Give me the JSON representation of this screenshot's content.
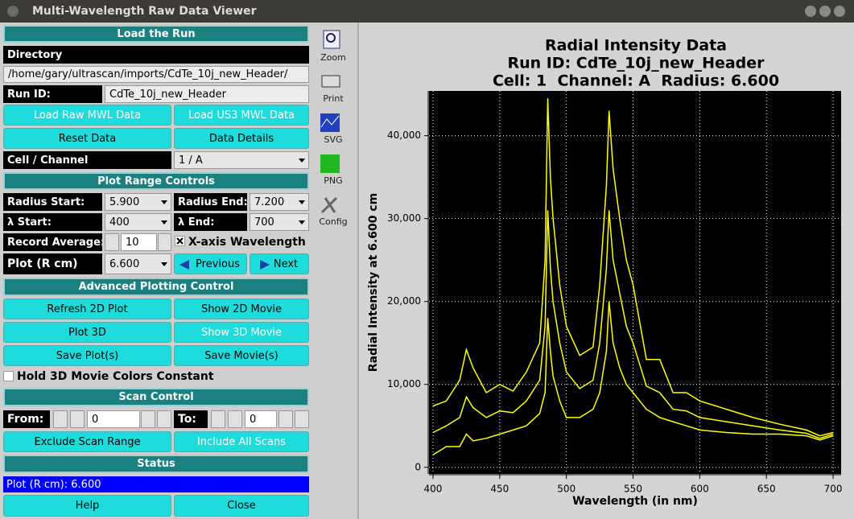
{
  "window": {
    "title": "Multi-Wavelength Raw Data Viewer"
  },
  "load_run": {
    "header": "Load the Run",
    "directory_label": "Directory",
    "directory": "/home/gary/ultrascan/imports/CdTe_10j_new_Header/",
    "run_id_label": "Run ID:",
    "run_id": "CdTe_10j_new_Header",
    "load_raw": "Load Raw MWL Data",
    "load_us3": "Load US3 MWL Data",
    "reset": "Reset Data",
    "details": "Data Details",
    "cell_label": "Cell / Channel",
    "cell": "1 / A"
  },
  "plot_range": {
    "header": "Plot Range Controls",
    "radius_start_label": "Radius Start:",
    "radius_start": "5.900",
    "radius_end_label": "Radius End:",
    "radius_end": "7.200",
    "lambda_start_label": "λ Start:",
    "lambda_start": "400",
    "lambda_end_label": "λ End:",
    "lambda_end": "700",
    "record_average_label": "Record Average:",
    "record_average": "10",
    "x_axis_wavelength": "X-axis Wavelength",
    "plot_label": "Plot (R cm)",
    "plot": "6.600",
    "previous": "Previous",
    "next": "Next"
  },
  "advanced": {
    "header": "Advanced Plotting Control",
    "refresh_2d": "Refresh 2D Plot",
    "show_2d_movie": "Show 2D Movie",
    "plot_3d": "Plot 3D",
    "show_3d_movie": "Show 3D Movie",
    "save_plots": "Save Plot(s)",
    "save_movies": "Save Movie(s)",
    "hold_colors": "Hold 3D Movie Colors Constant"
  },
  "scan": {
    "header": "Scan Control",
    "from_label": "From:",
    "from": "0",
    "to_label": "To:",
    "to": "0",
    "exclude": "Exclude Scan Range",
    "include_all": "Include All Scans"
  },
  "status": {
    "header": "Status",
    "message": "Plot (R cm): 6.600",
    "help": "Help",
    "close": "Close"
  },
  "toolbar": [
    "Zoom",
    "Print",
    "SVG",
    "PNG",
    "Config"
  ],
  "chart_data": {
    "type": "line",
    "title": [
      "Radial Intensity Data",
      "Run ID: CdTe_10j_new_Header",
      "Cell: 1  Channel: A  Radius: 6.600"
    ],
    "xlabel": "Wavelength (in nm)",
    "ylabel": "Radial Intensity at 6.600 cm",
    "x": [
      400,
      410,
      420,
      425,
      430,
      440,
      450,
      460,
      470,
      480,
      484,
      486,
      488,
      490,
      495,
      500,
      510,
      520,
      525,
      530,
      532,
      535,
      540,
      545,
      550,
      560,
      570,
      580,
      590,
      600,
      620,
      640,
      660,
      680,
      690,
      700
    ],
    "series": [
      {
        "color": "#ffff00",
        "values": [
          7400,
          8000,
          10500,
          14200,
          12000,
          9000,
          10000,
          9200,
          11500,
          15000,
          25000,
          44500,
          35000,
          30000,
          22000,
          17000,
          13500,
          14500,
          22000,
          34000,
          43000,
          36000,
          30000,
          25000,
          22000,
          13000,
          13000,
          9000,
          9000,
          8000,
          7000,
          6000,
          5200,
          4500,
          3800,
          4200
        ]
      },
      {
        "color": "#ffff00",
        "values": [
          4200,
          5000,
          6000,
          8500,
          7200,
          6000,
          6800,
          6600,
          8000,
          10500,
          17000,
          31000,
          24000,
          20000,
          15000,
          11500,
          9500,
          10500,
          15000,
          24000,
          31000,
          25000,
          21000,
          17000,
          15000,
          9800,
          9000,
          7000,
          6800,
          6000,
          5500,
          5000,
          4500,
          4100,
          3500,
          4000
        ]
      },
      {
        "color": "#ffff00",
        "values": [
          1500,
          2500,
          2500,
          4000,
          3200,
          3500,
          4000,
          4500,
          5000,
          6500,
          9000,
          18000,
          14000,
          11000,
          8000,
          6000,
          6000,
          7000,
          9000,
          14000,
          20000,
          15000,
          12000,
          10000,
          9000,
          7000,
          6000,
          5500,
          5000,
          4500,
          4200,
          4000,
          4000,
          3800,
          3300,
          3800
        ]
      }
    ],
    "xlim": [
      397,
      706
    ],
    "xticks": [
      400,
      450,
      500,
      550,
      600,
      650,
      700
    ],
    "ylim": [
      -800,
      45400
    ],
    "yticks": [
      0,
      {
        "value": 10000,
        "label": "10,000"
      },
      {
        "value": 20000,
        "label": "20,000"
      },
      {
        "value": 30000,
        "label": "30,000"
      },
      {
        "value": 40000,
        "label": "40,000"
      }
    ],
    "grid": true,
    "background": "#000000",
    "grid_color": "#ffffff"
  }
}
